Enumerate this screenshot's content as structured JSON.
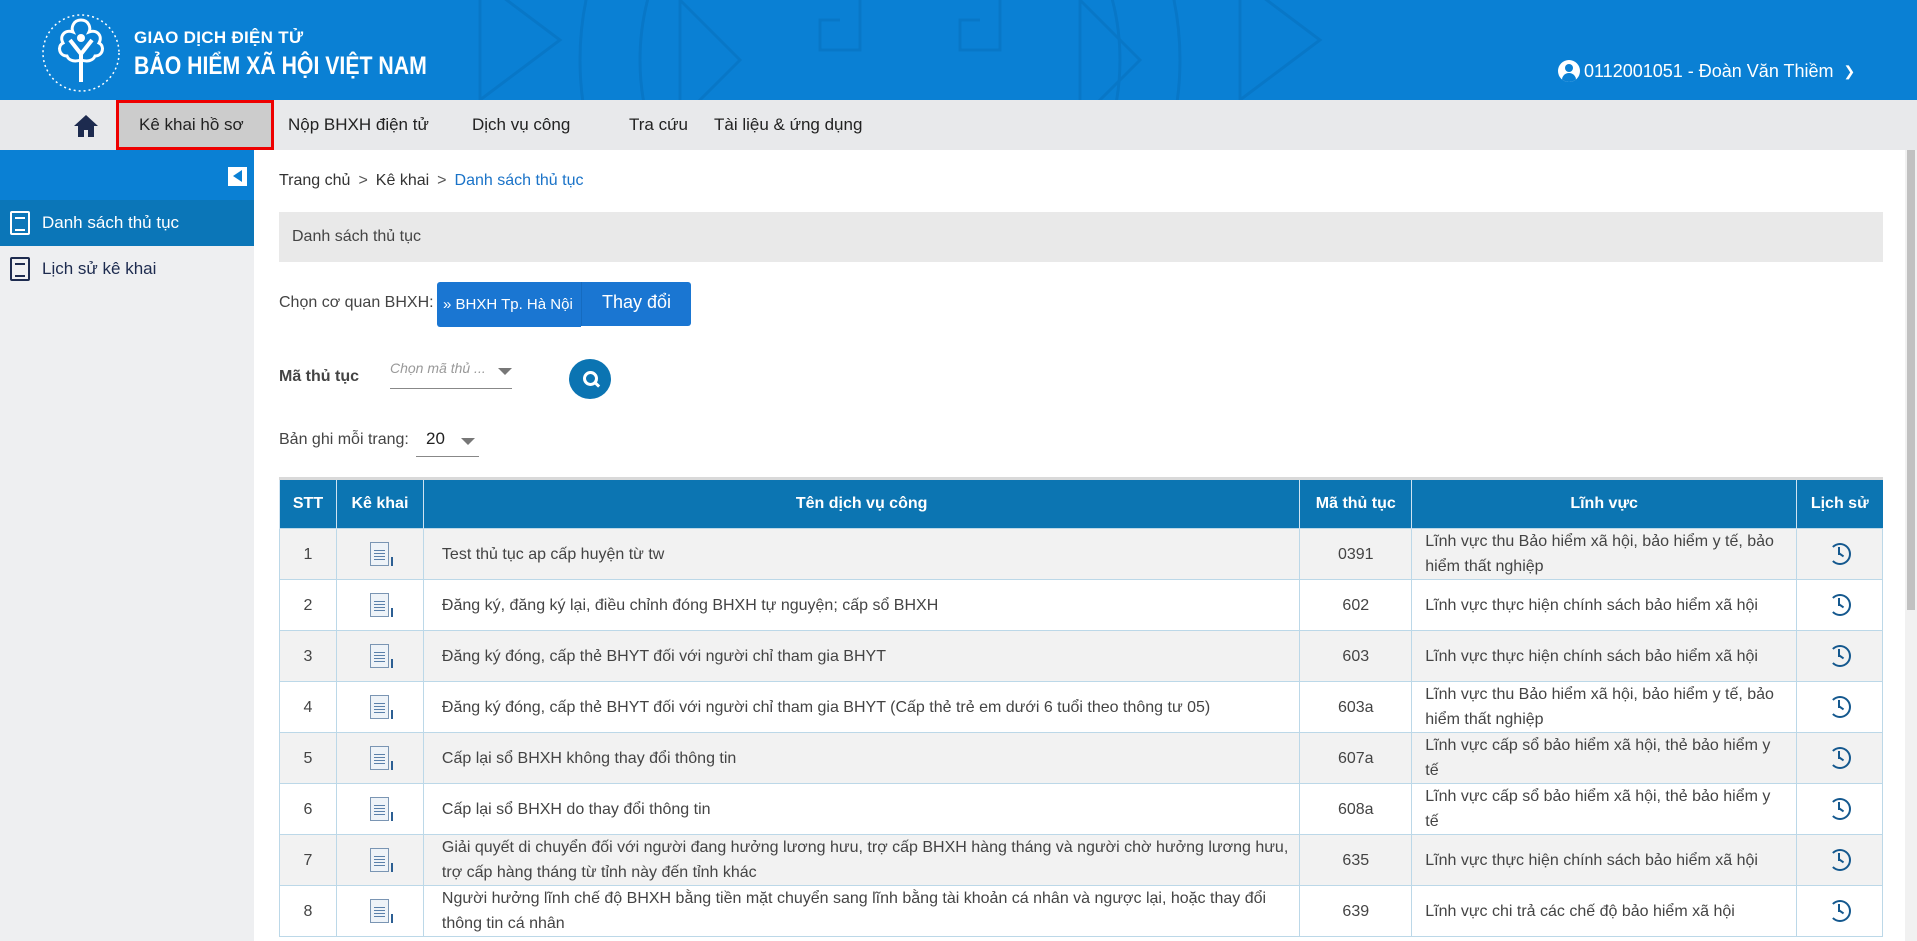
{
  "header": {
    "brand_line1": "GIAO DỊCH ĐIỆN TỬ",
    "brand_line2": "BẢO HIỂM XÃ HỘI VIỆT NAM",
    "logo_text": "BẢO HIỂM XÃ HỘI VIỆT NAM",
    "user": "0112001051 - Đoàn Văn Thiềm",
    "color": "#0a80d4"
  },
  "nav": {
    "items": [
      {
        "label": "Kê khai hồ sơ",
        "active": true
      },
      {
        "label": "Nộp BHXH điện tử"
      },
      {
        "label": "Dịch vụ công"
      },
      {
        "label": "Tra cứu"
      },
      {
        "label": "Tài liệu & ứng dụng"
      }
    ]
  },
  "sidebar": {
    "items": [
      {
        "label": "Danh sách thủ tục",
        "active": true
      },
      {
        "label": "Lịch sử kê khai"
      }
    ]
  },
  "breadcrumb": [
    "Trang chủ",
    "Kê khai",
    "Danh sách thủ tục"
  ],
  "panel_title": "Danh sách thủ tục",
  "filters": {
    "agency_label": "Chọn cơ quan BHXH:",
    "agency_value": "BHXH Tp. Hà Nội",
    "change_label": "Thay đổi",
    "code_label": "Mã thủ tục",
    "code_placeholder": "Chọn mã thủ ...",
    "per_page_label": "Bản ghi mỗi trang:",
    "per_page_value": "20"
  },
  "table": {
    "headers": [
      "STT",
      "Kê khai",
      "Tên dịch vụ công",
      "Mã thủ tục",
      "Lĩnh vực",
      "Lịch sử"
    ],
    "rows": [
      {
        "stt": "1",
        "name": "Test thủ tục ap cấp huyện từ tw",
        "code": "0391",
        "field": "Lĩnh vực thu Bảo hiểm xã hội, bảo hiểm y tế, bảo hiểm thất nghiệp"
      },
      {
        "stt": "2",
        "name": "Đăng ký, đăng ký lại, điều chỉnh đóng BHXH tự nguyện; cấp sổ BHXH",
        "code": "602",
        "field": "Lĩnh vực thực hiện chính sách bảo hiểm xã hội"
      },
      {
        "stt": "3",
        "name": "Đăng ký đóng, cấp thẻ BHYT đối với người chỉ tham gia BHYT",
        "code": "603",
        "field": "Lĩnh vực thực hiện chính sách bảo hiểm xã hội"
      },
      {
        "stt": "4",
        "name": "Đăng ký đóng, cấp thẻ BHYT đối với người chỉ tham gia BHYT (Cấp thẻ trẻ em dưới 6 tuổi theo thông tư 05)",
        "code": "603a",
        "field": "Lĩnh vực thu Bảo hiểm xã hội, bảo hiểm y tế, bảo hiểm thất nghiệp"
      },
      {
        "stt": "5",
        "name": "Cấp lại sổ BHXH không thay đổi thông tin",
        "code": "607a",
        "field": "Lĩnh vực cấp sổ bảo hiểm xã hội, thẻ bảo hiểm y tế"
      },
      {
        "stt": "6",
        "name": "Cấp lại sổ BHXH do thay đổi thông tin",
        "code": "608a",
        "field": "Lĩnh vực cấp sổ bảo hiểm xã hội, thẻ bảo hiểm y tế"
      },
      {
        "stt": "7",
        "name": "Giải quyết di chuyển đối với người đang hưởng lương hưu, trợ cấp BHXH hàng tháng và người chờ hưởng lương hưu, trợ cấp hàng tháng từ tỉnh này đến tỉnh khác",
        "code": "635",
        "field": "Lĩnh vực thực hiện chính sách bảo hiểm xã hội"
      },
      {
        "stt": "8",
        "name": "Người hưởng lĩnh chế độ BHXH bằng tiền mặt chuyển sang lĩnh bằng tài khoản cá nhân và ngược lại, hoặc thay đổi thông tin cá nhân",
        "code": "639",
        "field": "Lĩnh vực chi trả các chế độ bảo hiểm xã hội"
      }
    ]
  }
}
